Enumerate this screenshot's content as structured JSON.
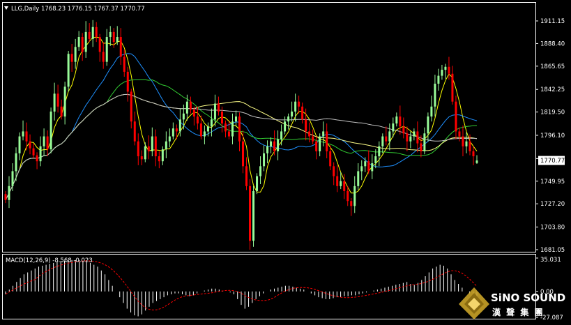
{
  "header": {
    "menu_icon": "triangle-down-icon",
    "title": "LLG,Daily  1768.23 1776.15 1767.37 1770.77"
  },
  "price_axis": {
    "ticks": [
      "1911.15",
      "1888.40",
      "1865.65",
      "1842.25",
      "1819.50",
      "1796.10",
      "1772.70",
      "1749.95",
      "1727.20",
      "1703.80",
      "1681.05"
    ],
    "current_price": "1770.77"
  },
  "macd_panel": {
    "label": "MACD(12,26,9) -8.568 -0.023",
    "ticks": [
      "35.031",
      "0.00",
      "-27.087"
    ]
  },
  "branding": {
    "logo_icon": "sino-sound-diamond-logo",
    "name": "SiNO SOUND",
    "chinese_name": "漢 聲 集 團"
  },
  "colors": {
    "background": "#000000",
    "bull_candle": "#98fb98",
    "bear_candle": "#ff0000",
    "fast_ma": "#ffff00",
    "slow_ma": "#ffff88",
    "green_ma": "#32cd32",
    "blue_ma": "#1e90ff",
    "gray_ma": "#c0c0c0",
    "macd_hist": "#ffffff",
    "macd_signal": "#ff0000"
  },
  "chart_data": {
    "type": "candlestick",
    "symbol": "LLG",
    "timeframe": "Daily",
    "ylim": [
      1681.05,
      1911.15
    ],
    "last_bar": {
      "open": 1768.23,
      "high": 1776.15,
      "low": 1767.37,
      "close": 1770.77
    },
    "close_series": [
      1731,
      1745,
      1760,
      1778,
      1795,
      1800,
      1790,
      1783,
      1776,
      1770,
      1785,
      1795,
      1782,
      1820,
      1838,
      1825,
      1815,
      1845,
      1878,
      1870,
      1885,
      1895,
      1880,
      1900,
      1893,
      1905,
      1895,
      1880,
      1870,
      1895,
      1900,
      1890,
      1895,
      1875,
      1860,
      1840,
      1810,
      1790,
      1775,
      1772,
      1785,
      1780,
      1795,
      1775,
      1770,
      1782,
      1790,
      1795,
      1803,
      1800,
      1812,
      1818,
      1830,
      1822,
      1815,
      1808,
      1795,
      1800,
      1805,
      1812,
      1828,
      1820,
      1808,
      1800,
      1795,
      1810,
      1815,
      1790,
      1765,
      1745,
      1690,
      1740,
      1755,
      1765,
      1778,
      1785,
      1790,
      1780,
      1792,
      1800,
      1810,
      1815,
      1820,
      1830,
      1825,
      1812,
      1800,
      1795,
      1790,
      1780,
      1795,
      1800,
      1780,
      1765,
      1755,
      1745,
      1750,
      1740,
      1730,
      1725,
      1745,
      1760,
      1765,
      1770,
      1760,
      1768,
      1775,
      1785,
      1795,
      1790,
      1800,
      1808,
      1815,
      1805,
      1798,
      1790,
      1795,
      1800,
      1788,
      1780,
      1798,
      1815,
      1825,
      1848,
      1856,
      1862,
      1865,
      1858,
      1830,
      1800,
      1795,
      1785,
      1790,
      1780,
      1775,
      1770.77
    ],
    "macd_histogram": [
      -3,
      2,
      6,
      10,
      14,
      18,
      20,
      22,
      24,
      26,
      27,
      28,
      29,
      30,
      31,
      32,
      32,
      32,
      33,
      33,
      33,
      32,
      31,
      30,
      28,
      26,
      22,
      18,
      12,
      6,
      0,
      -6,
      -12,
      -18,
      -22,
      -25,
      -26,
      -24,
      -20,
      -16,
      -12,
      -10,
      -8,
      -6,
      -4,
      -3,
      -2,
      -2,
      -3,
      -4,
      -5,
      -4,
      -2,
      0,
      1,
      2,
      3,
      3,
      2,
      1,
      0,
      -1,
      -3,
      -8,
      -14,
      -18,
      -16,
      -12,
      -8,
      -5,
      -2,
      0,
      2,
      3,
      4,
      5,
      6,
      6,
      5,
      4,
      3,
      2,
      0,
      -2,
      -4,
      -6,
      -7,
      -8,
      -8,
      -7,
      -6,
      -6,
      -5,
      -5,
      -4,
      -4,
      -3,
      -2,
      -1,
      0,
      1,
      2,
      3,
      4,
      5,
      6,
      7,
      8,
      9,
      10,
      8,
      7,
      9,
      12,
      16,
      20,
      24,
      26,
      28,
      27,
      24,
      18,
      12,
      8,
      4,
      0,
      -3,
      -6,
      -8
    ]
  }
}
